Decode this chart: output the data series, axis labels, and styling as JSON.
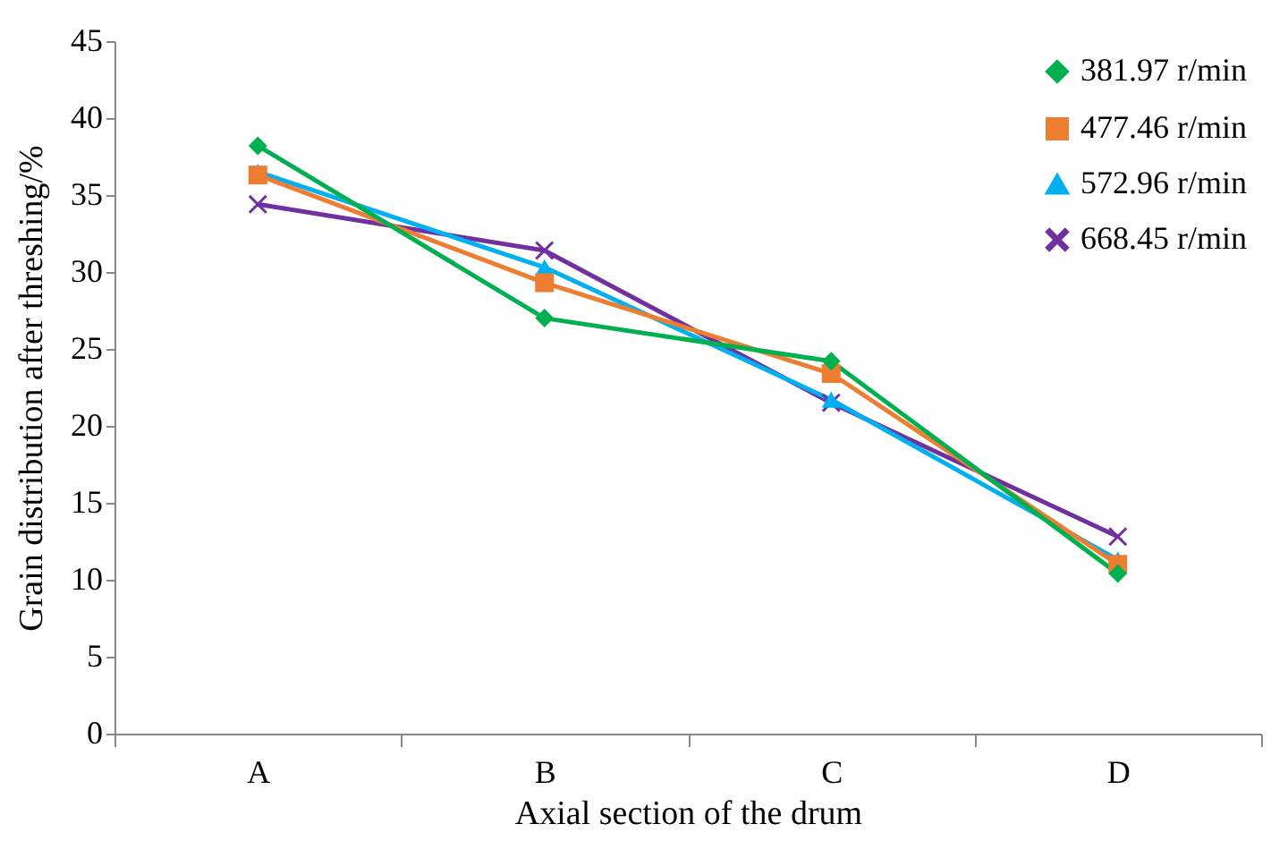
{
  "chart_data": {
    "type": "line",
    "xlabel": "Axial section of the drum",
    "ylabel": "Grain distribution after threshing/%",
    "categories": [
      "A",
      "B",
      "C",
      "D"
    ],
    "series": [
      {
        "name": "381.97 r/min",
        "color": "#00b050",
        "marker": "diamond",
        "values": [
          38.2,
          27.0,
          24.2,
          10.4
        ]
      },
      {
        "name": "477.46 r/min",
        "color": "#ed7d31",
        "marker": "square",
        "values": [
          36.3,
          29.3,
          23.4,
          11.0
        ]
      },
      {
        "name": "572.96 r/min",
        "color": "#00b0f0",
        "marker": "triangle",
        "values": [
          36.5,
          30.3,
          21.7,
          11.3
        ]
      },
      {
        "name": "668.45 r/min",
        "color": "#7030a0",
        "marker": "cross",
        "values": [
          34.4,
          31.4,
          21.5,
          12.8
        ]
      }
    ],
    "ylim": [
      0,
      45
    ],
    "yticks": [
      0,
      5,
      10,
      15,
      20,
      25,
      30,
      35,
      40,
      45
    ],
    "grid": false,
    "legend": "top right"
  }
}
